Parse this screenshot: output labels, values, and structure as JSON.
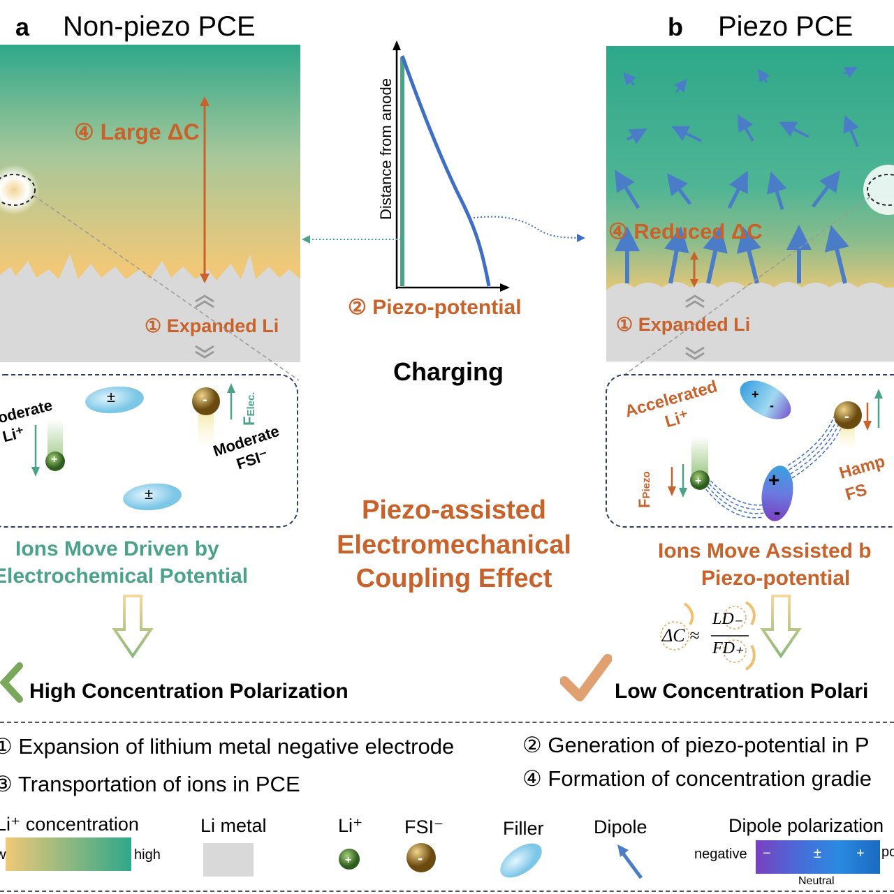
{
  "panel_a": {
    "letter": "a",
    "title": "Non-piezo PCE",
    "large_dc": "④ Large ΔC",
    "expanded_li": "① Expanded Li",
    "moderate_li": "oderate Li⁺",
    "moderate_fsi": "Moderate FSI⁻",
    "f_elec": "F",
    "f_elec_sub": "Elec.",
    "filler_symbol": "±",
    "caption_line1": "Ions Move Driven by",
    "caption_line2": "Electrochemical Potential",
    "result": "High Concentration Polarization"
  },
  "panel_b": {
    "letter": "b",
    "title": "Piezo PCE",
    "reduced_dc": "④ Reduced ΔC",
    "expanded_li": "① Expanded Li",
    "accelerated_li": "Accelerated Li⁺",
    "hampered_fsi": "Hamp FS",
    "f_piezo": "F",
    "f_piezo_sub": "Piezo",
    "caption_line1": "Ions Move Assisted b",
    "caption_line2": "Piezo-potential",
    "formula_lhs": "ΔC ≈",
    "formula_num": "LD₋",
    "formula_den": "FD₊",
    "result": "Low Concentration Polari"
  },
  "center": {
    "y_axis_label": "Distance from anode",
    "piezo_label": "② Piezo-potential",
    "charging": "Charging",
    "effect_line1": "Piezo-assisted",
    "effect_line2": "Electromechanical",
    "effect_line3": "Coupling Effect"
  },
  "notes": {
    "n1": "① Expansion of lithium metal negative electrode",
    "n2": "② Generation of piezo-potential in P",
    "n3": "③ Transportation of ions in PCE",
    "n4": "④ Formation of concentration gradie"
  },
  "legend": {
    "li_conc": "Li⁺ concentration",
    "low": "w",
    "high": "high",
    "li_metal": "Li metal",
    "li_ion": "Li⁺",
    "fsi": "FSI⁻",
    "filler": "Filler",
    "dipole": "Dipole",
    "dipole_pol": "Dipole polarization",
    "negative": "negative",
    "positive": "po",
    "neutral": "Neutral",
    "minus": "−",
    "pm": "±",
    "plus": "+"
  },
  "colors": {
    "orange": "#c8612a",
    "teal": "#4aa389",
    "gradient_low": "#f0c878",
    "gradient_high": "#2ea88a",
    "li_metal": "#d9d9d9",
    "dipole_arrow": "#4a7cc7"
  }
}
